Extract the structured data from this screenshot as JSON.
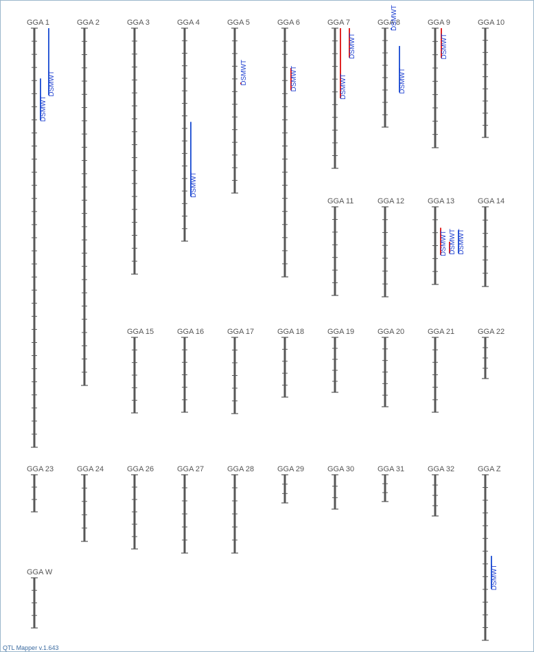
{
  "app": {
    "version_text": "QTL Mapper v.1.643"
  },
  "colors": {
    "chromosome": "#575757",
    "qtl_red": "#e02424",
    "qtl_blue": "#2d5bd6",
    "qtl_text": "#1d3fd0"
  },
  "chromosomes": [
    {
      "name": "GGA 1",
      "ticks": 31,
      "qtls": [
        {
          "label": "DSMWT",
          "color": "blue",
          "start": 0.12,
          "end": 0.22
        },
        {
          "label": "DSMWT",
          "color": "blue",
          "start": 0.0,
          "end": 0.16
        }
      ]
    },
    {
      "name": "GGA 2",
      "ticks": 26,
      "qtls": []
    },
    {
      "name": "GGA 3",
      "ticks": 18,
      "qtls": []
    },
    {
      "name": "GGA 4",
      "ticks": 16,
      "qtls": [
        {
          "label": "DSMWT",
          "color": "blue",
          "start": 0.44,
          "end": 0.79
        }
      ]
    },
    {
      "name": "GGA 5",
      "ticks": 12,
      "qtls": [
        {
          "label": "DSMWT",
          "color": "red",
          "start": 0.33,
          "end": 0.34
        }
      ]
    },
    {
      "name": "GGA 6",
      "ticks": 18,
      "qtls": [
        {
          "label": "DSMWT",
          "color": "red",
          "start": 0.16,
          "end": 0.25
        }
      ]
    },
    {
      "name": "GGA 7",
      "ticks": 10,
      "qtls": [
        {
          "label": "DSMWT",
          "color": "red",
          "start": 0.0,
          "end": 0.5
        },
        {
          "label": "DSMWT",
          "color": "red",
          "start": 0.0,
          "end": 0.21
        }
      ]
    },
    {
      "name": "GGA 8",
      "ticks": 7,
      "qtls": [
        {
          "label": "DSMWT",
          "color": "blue",
          "start": 0.0,
          "end": 0.0
        },
        {
          "label": "DSMWT",
          "color": "blue",
          "start": 0.18,
          "end": 0.65
        }
      ]
    },
    {
      "name": "GGA 9",
      "ticks": 8,
      "qtls": [
        {
          "label": "DSMWT",
          "color": "red",
          "start": 0.0,
          "end": 0.25
        }
      ]
    },
    {
      "name": "GGA 10",
      "ticks": 8,
      "qtls": []
    },
    {
      "name": "GGA 11",
      "ticks": 6,
      "qtls": []
    },
    {
      "name": "GGA 12",
      "ticks": 6,
      "qtls": []
    },
    {
      "name": "GGA 13",
      "ticks": 5,
      "qtls": [
        {
          "label": "DSMWT",
          "color": "red",
          "start": 0.27,
          "end": 0.62
        },
        {
          "label": "DSMWT",
          "color": "red",
          "start": 0.45,
          "end": 0.6
        },
        {
          "label": "DSMWT",
          "color": "blue",
          "start": 0.3,
          "end": 0.6
        }
      ]
    },
    {
      "name": "GGA 14",
      "ticks": 5,
      "qtls": []
    },
    {
      "name": "GGA 15",
      "ticks": 5,
      "qtls": []
    },
    {
      "name": "GGA 16",
      "ticks": 5,
      "qtls": []
    },
    {
      "name": "GGA 17",
      "ticks": 5,
      "qtls": []
    },
    {
      "name": "GGA 18",
      "ticks": 4,
      "qtls": []
    },
    {
      "name": "GGA 19",
      "ticks": 4,
      "qtls": []
    },
    {
      "name": "GGA 20",
      "ticks": 5,
      "qtls": []
    },
    {
      "name": "GGA 21",
      "ticks": 5,
      "qtls": []
    },
    {
      "name": "GGA 22",
      "ticks": 3,
      "qtls": []
    },
    {
      "name": "GGA 23",
      "ticks": 2,
      "qtls": []
    },
    {
      "name": "GGA 24",
      "ticks": 4,
      "qtls": []
    },
    {
      "name": "GGA 26",
      "ticks": 5,
      "qtls": []
    },
    {
      "name": "GGA 27",
      "ticks": 5,
      "qtls": []
    },
    {
      "name": "GGA 28",
      "ticks": 5,
      "qtls": []
    },
    {
      "name": "GGA 29",
      "ticks": 2,
      "qtls": []
    },
    {
      "name": "GGA 30",
      "ticks": 2,
      "qtls": []
    },
    {
      "name": "GGA 31",
      "ticks": 2,
      "qtls": []
    },
    {
      "name": "GGA 32",
      "ticks": 3,
      "qtls": []
    },
    {
      "name": "GGA Z",
      "ticks": 12,
      "qtls": [
        {
          "label": "DSMWT",
          "color": "blue",
          "start": 0.49,
          "end": 0.69
        }
      ]
    },
    {
      "name": "GGA W",
      "ticks": 3,
      "qtls": []
    }
  ]
}
